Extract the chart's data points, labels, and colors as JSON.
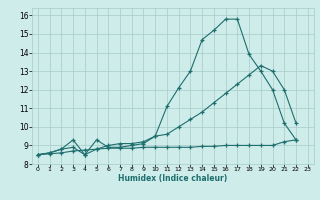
{
  "xlabel": "Humidex (Indice chaleur)",
  "background_color": "#ceecea",
  "grid_color": "#a8ccc8",
  "line_color": "#1e6e6e",
  "xlim": [
    -0.5,
    23.5
  ],
  "ylim": [
    8.0,
    16.4
  ],
  "xticks": [
    0,
    1,
    2,
    3,
    4,
    5,
    6,
    7,
    8,
    9,
    10,
    11,
    12,
    13,
    14,
    15,
    16,
    17,
    18,
    19,
    20,
    21,
    22,
    23
  ],
  "yticks": [
    8,
    9,
    10,
    11,
    12,
    13,
    14,
    15,
    16
  ],
  "line1_x": [
    0,
    1,
    2,
    3,
    4,
    5,
    6,
    7,
    8,
    9,
    10,
    11,
    12,
    13,
    14,
    15,
    16,
    17,
    18,
    19,
    20,
    21,
    22
  ],
  "line1_y": [
    8.5,
    8.6,
    8.8,
    9.3,
    8.5,
    9.3,
    8.9,
    8.9,
    9.0,
    9.1,
    9.5,
    11.1,
    12.1,
    13.0,
    14.7,
    15.2,
    15.8,
    15.8,
    13.9,
    13.0,
    12.0,
    10.2,
    9.3
  ],
  "line2_x": [
    0,
    1,
    2,
    3,
    4,
    5,
    6,
    7,
    8,
    9,
    10,
    11,
    12,
    13,
    14,
    15,
    16,
    17,
    18,
    19,
    20,
    21,
    22
  ],
  "line2_y": [
    8.5,
    8.6,
    8.8,
    8.9,
    8.5,
    8.8,
    9.0,
    9.1,
    9.1,
    9.2,
    9.5,
    9.6,
    10.0,
    10.4,
    10.8,
    11.3,
    11.8,
    12.3,
    12.8,
    13.3,
    13.0,
    12.0,
    10.2
  ],
  "line3_x": [
    0,
    1,
    2,
    3,
    4,
    5,
    6,
    7,
    8,
    9,
    10,
    11,
    12,
    13,
    14,
    15,
    16,
    17,
    18,
    19,
    20,
    21,
    22
  ],
  "line3_y": [
    8.5,
    8.55,
    8.6,
    8.7,
    8.75,
    8.8,
    8.85,
    8.85,
    8.85,
    8.9,
    8.9,
    8.9,
    8.9,
    8.9,
    8.95,
    8.95,
    9.0,
    9.0,
    9.0,
    9.0,
    9.0,
    9.2,
    9.3
  ]
}
